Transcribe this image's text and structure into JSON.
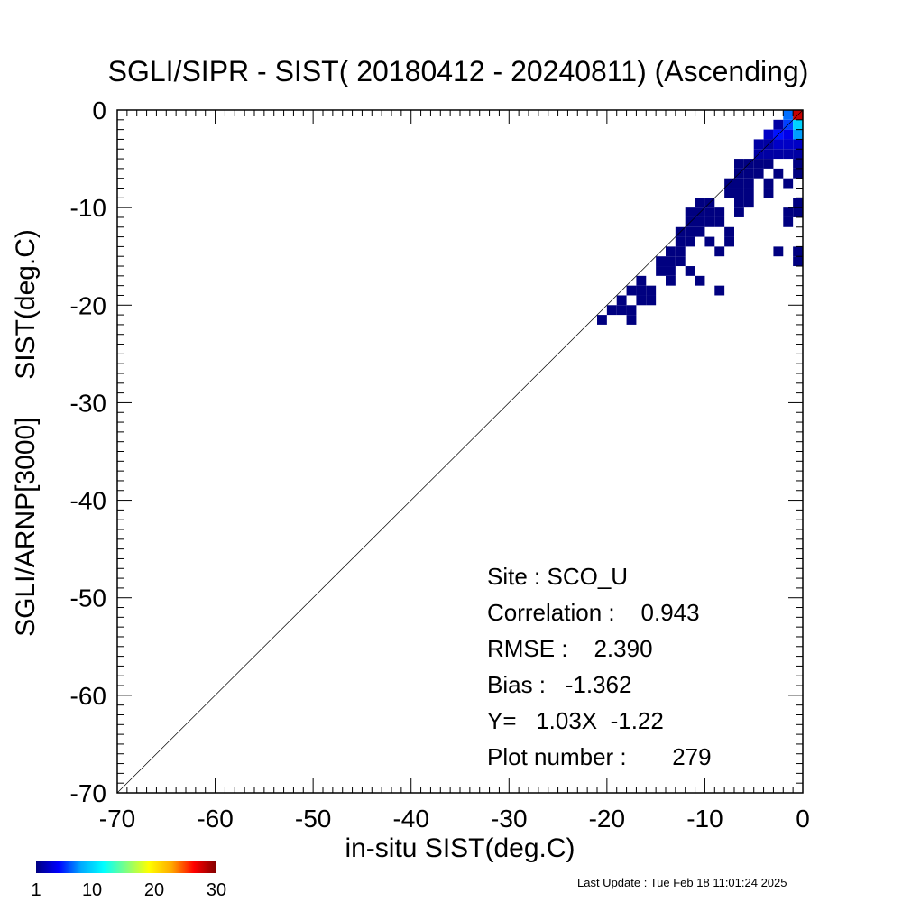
{
  "chart_data": {
    "type": "heatmap",
    "title": "SGLI/SIPR - SIST( 20180412 - 20240811) (Ascending)",
    "xlabel": "in-situ SIST(deg.C)",
    "ylabel": "SGLI/ARNP[3000]     SIST(deg.C)",
    "xlim": [
      -70,
      0
    ],
    "ylim": [
      -70,
      0
    ],
    "xticks": [
      -70,
      -60,
      -50,
      -40,
      -30,
      -20,
      -10,
      0
    ],
    "yticks": [
      -70,
      -60,
      -50,
      -40,
      -30,
      -20,
      -10,
      0
    ],
    "x_tick_labels": [
      "-70",
      "-60",
      "-50",
      "-40",
      "-30",
      "-20",
      "-10",
      "0"
    ],
    "y_tick_labels": [
      "-70",
      "-60",
      "-50",
      "-40",
      "-30",
      "-20",
      "-10",
      "0"
    ],
    "bin_size": 1,
    "reference_line": "y = x",
    "grid": false,
    "colorbar": {
      "range": [
        1,
        30
      ],
      "tick_values": [
        1,
        10,
        20,
        30
      ],
      "tick_labels": [
        "1",
        "10",
        "20",
        "30"
      ],
      "colors": [
        "#000080",
        "#0000ff",
        "#00aaff",
        "#00ffff",
        "#80ff80",
        "#ffff00",
        "#ffaa00",
        "#ff0000",
        "#800000"
      ],
      "placement": "bottom-left"
    },
    "stats": [
      {
        "label": "Site : SCO_U"
      },
      {
        "label": "Correlation :    0.943"
      },
      {
        "label": "RMSE :    2.390"
      },
      {
        "label": "Bias :   -1.362"
      },
      {
        "label": "Y=   1.03X  -1.22"
      },
      {
        "label": "Plot number :       279"
      }
    ],
    "cells": [
      [
        -20,
        -21,
        1
      ],
      [
        -19,
        -20,
        1
      ],
      [
        -18,
        -20,
        1
      ],
      [
        -17,
        -20,
        1
      ],
      [
        -17,
        -21,
        1
      ],
      [
        -18,
        -19,
        1
      ],
      [
        -17,
        -18,
        1
      ],
      [
        -16,
        -18,
        1
      ],
      [
        -15,
        -18,
        1
      ],
      [
        -16,
        -17,
        1
      ],
      [
        -16,
        -19,
        1
      ],
      [
        -15,
        -19,
        1
      ],
      [
        -14,
        -16,
        1
      ],
      [
        -13,
        -16,
        1
      ],
      [
        -14,
        -15,
        1
      ],
      [
        -13,
        -15,
        1
      ],
      [
        -12,
        -15,
        1
      ],
      [
        -13,
        -14,
        1
      ],
      [
        -12,
        -14,
        1
      ],
      [
        -12,
        -13,
        1
      ],
      [
        -11,
        -13,
        1
      ],
      [
        -13,
        -17,
        1
      ],
      [
        -11,
        -16,
        1
      ],
      [
        -10,
        -17,
        1
      ],
      [
        -8,
        -18,
        1
      ],
      [
        -12,
        -12,
        1
      ],
      [
        -11,
        -12,
        1
      ],
      [
        -10,
        -12,
        1
      ],
      [
        -11,
        -11,
        1
      ],
      [
        -10,
        -11,
        1
      ],
      [
        -9,
        -11,
        1
      ],
      [
        -8,
        -11,
        1
      ],
      [
        -11,
        -10,
        1
      ],
      [
        -10,
        -10,
        1
      ],
      [
        -9,
        -10,
        1
      ],
      [
        -8,
        -10,
        1
      ],
      [
        -10,
        -9,
        1
      ],
      [
        -9,
        -9,
        1
      ],
      [
        -9,
        -13,
        1
      ],
      [
        -8,
        -14,
        1
      ],
      [
        -7,
        -12,
        1
      ],
      [
        -7,
        -13,
        1
      ],
      [
        -7,
        -8,
        1
      ],
      [
        -6,
        -8,
        1
      ],
      [
        -7,
        -7,
        1
      ],
      [
        -6,
        -7,
        1
      ],
      [
        -5,
        -7,
        1
      ],
      [
        -6,
        -6,
        1
      ],
      [
        -5,
        -6,
        1
      ],
      [
        -4,
        -6,
        1
      ],
      [
        -5,
        -5,
        1
      ],
      [
        -4,
        -5,
        1
      ],
      [
        -3,
        -5,
        1
      ],
      [
        -6,
        -9,
        1
      ],
      [
        -5,
        -9,
        1
      ],
      [
        -6,
        -5,
        1
      ],
      [
        -3,
        -7,
        1
      ],
      [
        -3,
        -8,
        1
      ],
      [
        -1,
        -7,
        1
      ],
      [
        -6,
        -10,
        1
      ],
      [
        -5,
        -8,
        1
      ],
      [
        -2,
        -6,
        1
      ],
      [
        -4,
        -4,
        2
      ],
      [
        -3,
        -4,
        2
      ],
      [
        -2,
        -4,
        2
      ],
      [
        -1,
        -4,
        2
      ],
      [
        0,
        -4,
        2
      ],
      [
        -4,
        -3,
        2
      ],
      [
        -3,
        -3,
        2
      ],
      [
        -2,
        -3,
        3
      ],
      [
        -1,
        -3,
        3
      ],
      [
        0,
        -3,
        3
      ],
      [
        -3,
        -2,
        3
      ],
      [
        -2,
        -2,
        5
      ],
      [
        -1,
        -2,
        4
      ],
      [
        0,
        -2,
        8
      ],
      [
        -1,
        -1,
        6
      ],
      [
        0,
        -1,
        10
      ],
      [
        -2,
        -1,
        2
      ],
      [
        -1,
        0,
        7
      ],
      [
        0,
        0,
        28
      ],
      [
        0,
        -5,
        1
      ],
      [
        0,
        -6,
        1
      ],
      [
        0,
        -9,
        1
      ],
      [
        0,
        -10,
        1
      ],
      [
        -1,
        -10,
        1
      ],
      [
        -1,
        -11,
        1
      ],
      [
        0,
        -14,
        1
      ],
      [
        0,
        -15,
        1
      ],
      [
        -2,
        -14,
        1
      ]
    ]
  },
  "footer": {
    "last_update": "Last Update : Tue Feb 18 11:01:24 2025"
  }
}
